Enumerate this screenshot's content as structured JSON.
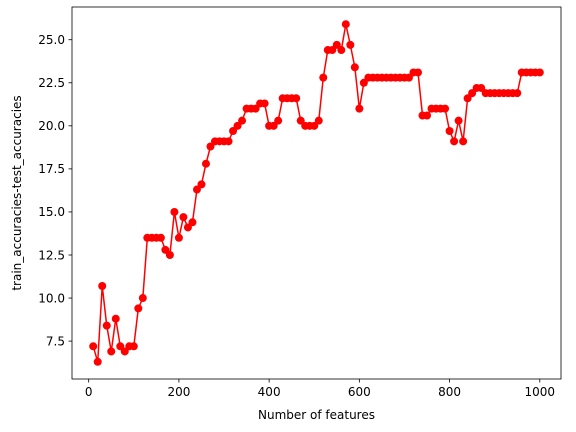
{
  "chart_data": {
    "type": "line",
    "title": "",
    "xlabel": "Number of features",
    "ylabel": "train_accuracies-test_accuracies",
    "xlim": [
      -37,
      1047
    ],
    "ylim": [
      5.3,
      26.9
    ],
    "xticks": [
      0,
      200,
      400,
      600,
      800,
      1000
    ],
    "xtick_labels": [
      "0",
      "200",
      "400",
      "600",
      "800",
      "1000"
    ],
    "yticks": [
      7.5,
      10.0,
      12.5,
      15.0,
      17.5,
      20.0,
      22.5,
      25.0
    ],
    "ytick_labels": [
      "7.5",
      "10.0",
      "12.5",
      "15.0",
      "17.5",
      "20.0",
      "22.5",
      "25.0"
    ],
    "grid": false,
    "legend": "none",
    "series": [
      {
        "color": "#ff0000",
        "marker": "circle",
        "x": [
          10,
          20,
          30,
          40,
          50,
          60,
          70,
          80,
          90,
          100,
          110,
          120,
          130,
          140,
          150,
          160,
          170,
          180,
          190,
          200,
          210,
          220,
          230,
          240,
          250,
          260,
          270,
          280,
          290,
          300,
          310,
          320,
          330,
          340,
          350,
          360,
          370,
          380,
          390,
          400,
          410,
          420,
          430,
          440,
          450,
          460,
          470,
          480,
          490,
          500,
          510,
          520,
          530,
          540,
          550,
          560,
          570,
          580,
          590,
          600,
          610,
          620,
          630,
          640,
          650,
          660,
          670,
          680,
          690,
          700,
          710,
          720,
          730,
          740,
          750,
          760,
          770,
          780,
          790,
          800,
          810,
          820,
          830,
          840,
          850,
          860,
          870,
          880,
          890,
          900,
          910,
          920,
          930,
          940,
          950,
          960,
          970,
          980,
          990,
          1000
        ],
        "values": [
          7.2,
          6.3,
          10.7,
          8.4,
          6.9,
          8.8,
          7.2,
          6.9,
          7.2,
          7.2,
          9.4,
          10.0,
          13.5,
          13.5,
          13.5,
          13.5,
          12.8,
          12.5,
          15.0,
          13.5,
          14.7,
          14.1,
          14.4,
          16.3,
          16.6,
          17.8,
          18.8,
          19.1,
          19.1,
          19.1,
          19.1,
          19.7,
          20.0,
          20.3,
          21.0,
          21.0,
          21.0,
          21.3,
          21.3,
          20.0,
          20.0,
          20.3,
          21.6,
          21.6,
          21.6,
          21.6,
          20.3,
          20.0,
          20.0,
          20.0,
          20.3,
          22.8,
          24.4,
          24.4,
          24.7,
          24.4,
          25.9,
          24.7,
          23.4,
          21.0,
          22.5,
          22.8,
          22.8,
          22.8,
          22.8,
          22.8,
          22.8,
          22.8,
          22.8,
          22.8,
          22.8,
          23.1,
          23.1,
          20.6,
          20.6,
          21.0,
          21.0,
          21.0,
          21.0,
          19.7,
          19.1,
          20.3,
          19.1,
          21.6,
          21.9,
          22.2,
          22.2,
          21.9,
          21.9,
          21.9,
          21.9,
          21.9,
          21.9,
          21.9,
          21.9,
          23.1,
          23.1,
          23.1,
          23.1,
          23.1
        ]
      }
    ]
  }
}
